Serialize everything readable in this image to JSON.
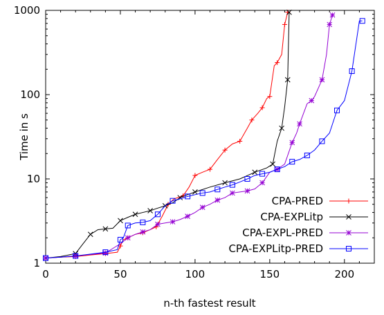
{
  "chart_data": {
    "type": "line",
    "title": "",
    "xlabel": "n-th fastest result",
    "ylabel": "Time in s",
    "xlim": [
      0,
      220
    ],
    "ylim": [
      1,
      1000
    ],
    "yscale": "log",
    "xticks": [
      0,
      50,
      100,
      150,
      200
    ],
    "yticks": [
      1,
      10,
      100,
      1000
    ],
    "xtick_labels": [
      "0",
      "50",
      "100",
      "150",
      "200"
    ],
    "ytick_labels": [
      "1",
      "10",
      "100",
      "1000"
    ],
    "grid": false,
    "legend_position": "bottom-right",
    "series": [
      {
        "name": "CPA-PRED",
        "color": "#ff0000",
        "marker": "plus",
        "points": [
          [
            0,
            1.15
          ],
          [
            10,
            1.18
          ],
          [
            20,
            1.2
          ],
          [
            30,
            1.25
          ],
          [
            40,
            1.3
          ],
          [
            48,
            1.35
          ],
          [
            50,
            1.6
          ],
          [
            52,
            1.9
          ],
          [
            55,
            2.0
          ],
          [
            60,
            2.2
          ],
          [
            65,
            2.3
          ],
          [
            70,
            2.5
          ],
          [
            74,
            2.7
          ],
          [
            78,
            3.6
          ],
          [
            82,
            5.0
          ],
          [
            86,
            5.8
          ],
          [
            92,
            6.3
          ],
          [
            96,
            8.0
          ],
          [
            100,
            11.0
          ],
          [
            105,
            12.0
          ],
          [
            110,
            13.0
          ],
          [
            115,
            17.0
          ],
          [
            120,
            22.0
          ],
          [
            125,
            26.0
          ],
          [
            130,
            28.0
          ],
          [
            135,
            40.0
          ],
          [
            138,
            50.0
          ],
          [
            142,
            60.0
          ],
          [
            145,
            70.0
          ],
          [
            148,
            90.0
          ],
          [
            150,
            95.0
          ],
          [
            153,
            220.0
          ],
          [
            155,
            240.0
          ],
          [
            158,
            300.0
          ],
          [
            160,
            680.0
          ],
          [
            162,
            950.0
          ]
        ]
      },
      {
        "name": "CPA-EXPLitp",
        "color": "#000000",
        "marker": "cross",
        "points": [
          [
            0,
            1.15
          ],
          [
            10,
            1.2
          ],
          [
            20,
            1.3
          ],
          [
            25,
            1.7
          ],
          [
            30,
            2.2
          ],
          [
            35,
            2.5
          ],
          [
            40,
            2.55
          ],
          [
            45,
            2.6
          ],
          [
            50,
            3.2
          ],
          [
            55,
            3.5
          ],
          [
            60,
            3.8
          ],
          [
            65,
            4.0
          ],
          [
            70,
            4.2
          ],
          [
            75,
            4.5
          ],
          [
            80,
            4.8
          ],
          [
            85,
            5.2
          ],
          [
            90,
            6.0
          ],
          [
            95,
            6.5
          ],
          [
            100,
            7.0
          ],
          [
            110,
            8.0
          ],
          [
            120,
            9.0
          ],
          [
            130,
            10.0
          ],
          [
            140,
            12.0
          ],
          [
            148,
            13.5
          ],
          [
            152,
            15.0
          ],
          [
            155,
            28.0
          ],
          [
            158,
            40.0
          ],
          [
            160,
            72.0
          ],
          [
            162,
            150.0
          ],
          [
            163,
            950.0
          ]
        ]
      },
      {
        "name": "CPA-EXPL-PRED",
        "color": "#9400d3",
        "marker": "star",
        "points": [
          [
            0,
            1.15
          ],
          [
            10,
            1.18
          ],
          [
            20,
            1.22
          ],
          [
            30,
            1.27
          ],
          [
            40,
            1.32
          ],
          [
            50,
            1.7
          ],
          [
            55,
            2.0
          ],
          [
            60,
            2.2
          ],
          [
            65,
            2.35
          ],
          [
            70,
            2.5
          ],
          [
            75,
            2.9
          ],
          [
            80,
            3.0
          ],
          [
            85,
            3.1
          ],
          [
            90,
            3.3
          ],
          [
            95,
            3.6
          ],
          [
            100,
            4.0
          ],
          [
            105,
            4.6
          ],
          [
            110,
            5.0
          ],
          [
            115,
            5.6
          ],
          [
            120,
            6.0
          ],
          [
            125,
            6.8
          ],
          [
            130,
            7.0
          ],
          [
            135,
            7.2
          ],
          [
            140,
            7.6
          ],
          [
            145,
            9.0
          ],
          [
            150,
            12.0
          ],
          [
            155,
            13.0
          ],
          [
            160,
            15.0
          ],
          [
            165,
            27.0
          ],
          [
            168,
            35.0
          ],
          [
            170,
            45.0
          ],
          [
            175,
            78.0
          ],
          [
            178,
            85.0
          ],
          [
            180,
            95.0
          ],
          [
            185,
            150.0
          ],
          [
            188,
            300.0
          ],
          [
            190,
            680.0
          ],
          [
            192,
            880.0
          ]
        ]
      },
      {
        "name": "CPA-EXPLitp-PRED",
        "color": "#0000ff",
        "marker": "square",
        "points": [
          [
            0,
            1.15
          ],
          [
            10,
            1.18
          ],
          [
            20,
            1.22
          ],
          [
            30,
            1.28
          ],
          [
            40,
            1.35
          ],
          [
            48,
            1.45
          ],
          [
            50,
            1.9
          ],
          [
            52,
            2.0
          ],
          [
            55,
            2.8
          ],
          [
            60,
            3.0
          ],
          [
            65,
            3.05
          ],
          [
            70,
            3.2
          ],
          [
            75,
            3.8
          ],
          [
            80,
            4.8
          ],
          [
            85,
            5.5
          ],
          [
            90,
            5.8
          ],
          [
            95,
            6.2
          ],
          [
            100,
            6.5
          ],
          [
            105,
            6.8
          ],
          [
            110,
            7.0
          ],
          [
            115,
            7.5
          ],
          [
            120,
            8.0
          ],
          [
            125,
            8.5
          ],
          [
            130,
            9.2
          ],
          [
            135,
            10.0
          ],
          [
            140,
            11.0
          ],
          [
            145,
            11.5
          ],
          [
            150,
            12.0
          ],
          [
            155,
            13.0
          ],
          [
            160,
            14.0
          ],
          [
            165,
            16.0
          ],
          [
            170,
            17.0
          ],
          [
            175,
            19.0
          ],
          [
            180,
            22.0
          ],
          [
            185,
            28.0
          ],
          [
            190,
            35.0
          ],
          [
            195,
            65.0
          ],
          [
            200,
            85.0
          ],
          [
            205,
            190.0
          ],
          [
            210,
            750.0
          ],
          [
            212,
            750.0
          ]
        ]
      }
    ]
  }
}
